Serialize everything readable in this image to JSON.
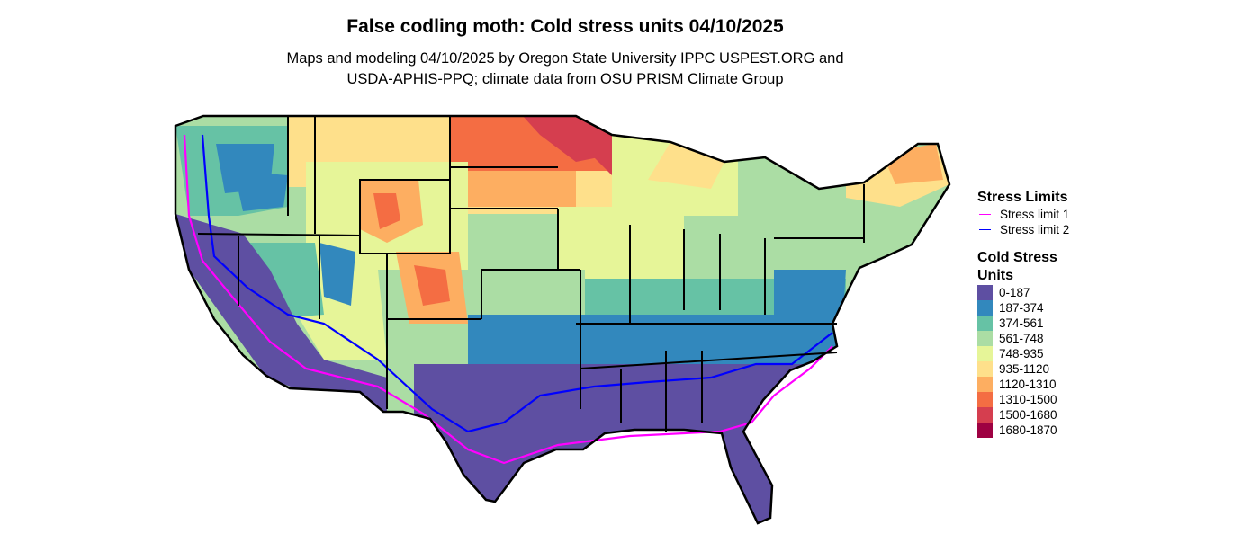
{
  "title": "False codling moth: Cold stress units 04/10/2025",
  "subtitle_lines": [
    "Maps and modeling 04/10/2025 by Oregon State University IPPC USPEST.ORG and",
    "USDA-APHIS-PPQ; climate data from OSU PRISM Climate Group"
  ],
  "legend": {
    "stress_title": "Stress Limits",
    "stress_items": [
      {
        "label": "Stress limit 1",
        "color": "#ff00ff"
      },
      {
        "label": "Stress limit 2",
        "color": "#0000ff"
      }
    ],
    "cold_title": "Cold Stress Units",
    "cold_items": [
      {
        "label": "0-187",
        "color": "#5e4fa2"
      },
      {
        "label": "187-374",
        "color": "#3288bd"
      },
      {
        "label": "374-561",
        "color": "#66c2a5"
      },
      {
        "label": "561-748",
        "color": "#abdda4"
      },
      {
        "label": "748-935",
        "color": "#e6f598"
      },
      {
        "label": "935-1120",
        "color": "#fee08b"
      },
      {
        "label": "1120-1310",
        "color": "#fdae61"
      },
      {
        "label": "1310-1500",
        "color": "#f46d43"
      },
      {
        "label": "1500-1680",
        "color": "#d53e4f"
      },
      {
        "label": "1680-1870",
        "color": "#9e0142"
      }
    ]
  }
}
